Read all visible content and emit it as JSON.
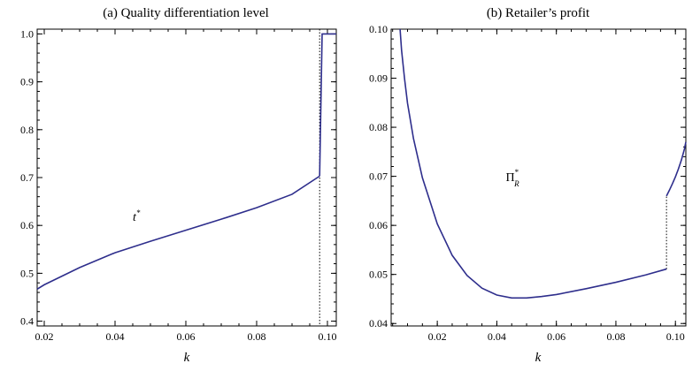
{
  "chart_data": [
    {
      "type": "line",
      "title": "(a) Quality differentiation level",
      "xlabel": "k",
      "ylabel": "",
      "xlim": [
        0.018,
        0.1025
      ],
      "ylim": [
        0.39,
        1.01
      ],
      "x_ticks": [
        "0.02",
        "0.04",
        "0.06",
        "0.08",
        "0.10"
      ],
      "y_ticks": [
        "0.4",
        "0.5",
        "0.6",
        "0.7",
        "0.8",
        "0.9",
        "1.0"
      ],
      "annotation": {
        "text": "t",
        "sup": "*",
        "x": 0.045,
        "y": 0.61
      },
      "jump_at": 0.0978,
      "series": [
        {
          "x": [
            0.018,
            0.02,
            0.03,
            0.04,
            0.05,
            0.06,
            0.07,
            0.08,
            0.09,
            0.0978
          ],
          "values": [
            0.467,
            0.476,
            0.512,
            0.543,
            0.567,
            0.59,
            0.613,
            0.637,
            0.665,
            0.703
          ]
        },
        {
          "x": [
            0.0978,
            0.0985,
            0.1025
          ],
          "values": [
            0.703,
            1.0,
            1.0
          ]
        }
      ]
    },
    {
      "type": "line",
      "title": "(b) Retailer’s profit",
      "xlabel": "k",
      "ylabel": "",
      "xlim": [
        0.0045,
        0.1035
      ],
      "ylim": [
        0.0395,
        0.1
      ],
      "x_ticks": [
        "0.02",
        "0.04",
        "0.06",
        "0.08",
        "0.10"
      ],
      "y_ticks": [
        "0.04",
        "0.05",
        "0.06",
        "0.07",
        "0.08",
        "0.09",
        "0.10"
      ],
      "annotation": {
        "text": "Π",
        "sup": "*",
        "sub": "R",
        "x": 0.043,
        "y": 0.069
      },
      "jump_at": 0.097,
      "series": [
        {
          "x": [
            0.0075,
            0.008,
            0.009,
            0.01,
            0.012,
            0.015,
            0.02,
            0.025,
            0.03,
            0.035,
            0.04,
            0.045,
            0.05,
            0.055,
            0.06,
            0.07,
            0.08,
            0.09,
            0.097
          ],
          "values": [
            0.1,
            0.0957,
            0.0899,
            0.0849,
            0.0777,
            0.0697,
            0.0603,
            0.0539,
            0.0498,
            0.0472,
            0.0458,
            0.0452,
            0.0452,
            0.0455,
            0.0459,
            0.0471,
            0.0484,
            0.0499,
            0.0511
          ]
        },
        {
          "x": [
            0.097,
            0.098,
            0.099,
            0.1,
            0.101,
            0.102,
            0.103,
            0.1035
          ],
          "values": [
            0.066,
            0.0672,
            0.0685,
            0.0699,
            0.0715,
            0.0733,
            0.0755,
            0.077
          ]
        }
      ]
    }
  ]
}
